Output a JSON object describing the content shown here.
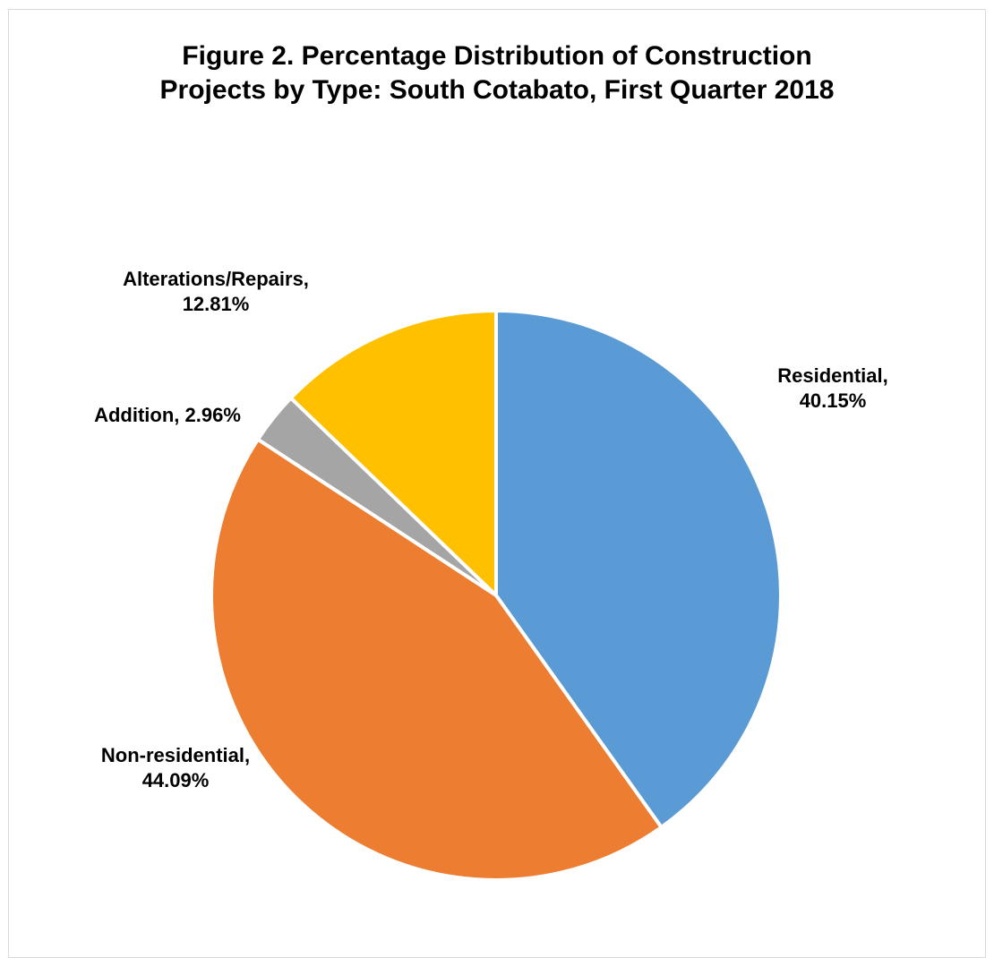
{
  "chart_data": {
    "type": "pie",
    "title_lines": [
      "Figure 2. Percentage Distribution of Construction",
      "Projects by Type: South Cotabato, First Quarter 2018"
    ],
    "slices": [
      {
        "label_lines": [
          "Residential,",
          "40.15%"
        ],
        "category": "Residential",
        "value": 40.15,
        "color": "#5B9BD5"
      },
      {
        "label_lines": [
          "Non-residential,",
          "44.09%"
        ],
        "category": "Non-residential",
        "value": 44.09,
        "color": "#ED7D31"
      },
      {
        "label_lines": [
          "Addition, 2.96%"
        ],
        "category": "Addition",
        "value": 2.96,
        "color": "#A5A5A5"
      },
      {
        "label_lines": [
          "Alterations/Repairs,",
          "12.81%"
        ],
        "category": "Alterations/Repairs",
        "value": 12.81,
        "color": "#FFC000"
      }
    ],
    "start_angle": "12 o'clock",
    "direction": "clockwise",
    "legend": "none",
    "data_labels": "outside"
  }
}
